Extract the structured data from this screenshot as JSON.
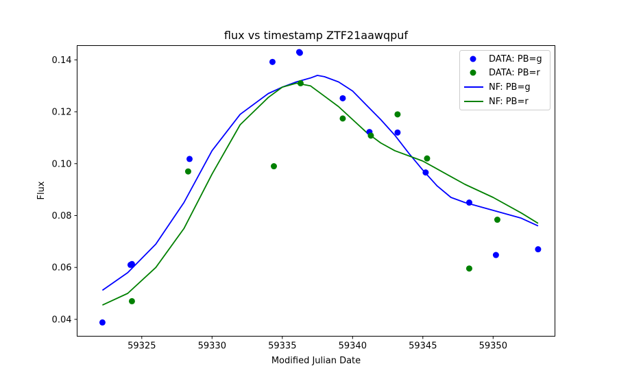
{
  "chart_data": {
    "type": "scatter",
    "title": "flux vs timestamp ZTF21aawqpuf",
    "xlabel": "Modified Julian Date",
    "ylabel": "Flux",
    "xlim": [
      59320.4,
      59354.4
    ],
    "ylim": [
      0.0335,
      0.1455
    ],
    "xticks": [
      59325,
      59330,
      59335,
      59340,
      59345,
      59350
    ],
    "yticks": [
      0.04,
      0.06,
      0.08,
      0.1,
      0.12,
      0.14
    ],
    "ytick_labels": [
      "0.04",
      "0.06",
      "0.08",
      "0.10",
      "0.12",
      "0.14"
    ],
    "grid": false,
    "legend_position": "top-right",
    "colors": {
      "g": "#0000ff",
      "r": "#008000"
    },
    "series": [
      {
        "name": "DATA: PB=g",
        "kind": "scatter",
        "color": "#0000ff",
        "x": [
          59322.2,
          59324.2,
          59324.3,
          59328.4,
          59334.3,
          59336.2,
          59336.25,
          59339.3,
          59341.2,
          59343.2,
          59345.2,
          59348.3,
          59350.2,
          59353.2
        ],
        "y": [
          0.0388,
          0.061,
          0.0613,
          0.1018,
          0.1392,
          0.143,
          0.1427,
          0.1252,
          0.1122,
          0.112,
          0.0966,
          0.085,
          0.0648,
          0.067
        ]
      },
      {
        "name": "DATA: PB=r",
        "kind": "scatter",
        "color": "#008000",
        "x": [
          59324.3,
          59328.3,
          59334.4,
          59336.3,
          59339.3,
          59341.3,
          59343.2,
          59345.3,
          59348.3,
          59350.3
        ],
        "y": [
          0.047,
          0.097,
          0.099,
          0.131,
          0.1174,
          0.1108,
          0.119,
          0.102,
          0.0596,
          0.0784
        ]
      },
      {
        "name": "NF: PB=g",
        "kind": "line",
        "color": "#0000ff",
        "x": [
          59322.2,
          59324,
          59326,
          59328,
          59330,
          59332,
          59334,
          59335,
          59336,
          59337,
          59337.5,
          59338,
          59339,
          59340,
          59341,
          59342,
          59343,
          59344,
          59345,
          59346,
          59347,
          59348,
          59350,
          59352,
          59353.2
        ],
        "y": [
          0.0512,
          0.058,
          0.069,
          0.085,
          0.105,
          0.119,
          0.127,
          0.1295,
          0.1315,
          0.133,
          0.134,
          0.1335,
          0.1315,
          0.128,
          0.1225,
          0.117,
          0.111,
          0.104,
          0.0975,
          0.0915,
          0.087,
          0.085,
          0.082,
          0.079,
          0.076
        ]
      },
      {
        "name": "NF: PB=r",
        "kind": "line",
        "color": "#008000",
        "x": [
          59322.2,
          59324,
          59326,
          59328,
          59330,
          59332,
          59334,
          59335,
          59336,
          59337,
          59338,
          59339,
          59340,
          59341,
          59342,
          59343,
          59344,
          59345,
          59346,
          59347,
          59348,
          59350,
          59352,
          59353.2
        ],
        "y": [
          0.0455,
          0.05,
          0.06,
          0.075,
          0.096,
          0.115,
          0.1255,
          0.1295,
          0.131,
          0.13,
          0.126,
          0.122,
          0.117,
          0.112,
          0.108,
          0.105,
          0.103,
          0.101,
          0.098,
          0.095,
          0.092,
          0.087,
          0.081,
          0.077
        ]
      }
    ]
  }
}
